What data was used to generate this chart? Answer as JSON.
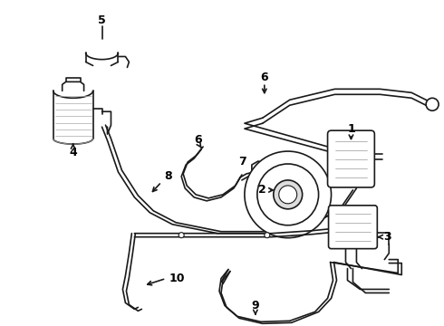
{
  "background_color": "#ffffff",
  "line_color": "#1a1a1a",
  "figsize": [
    4.9,
    3.6
  ],
  "dpi": 100,
  "lw": 1.2,
  "lw_thick": 1.8,
  "lw_thin": 0.8
}
